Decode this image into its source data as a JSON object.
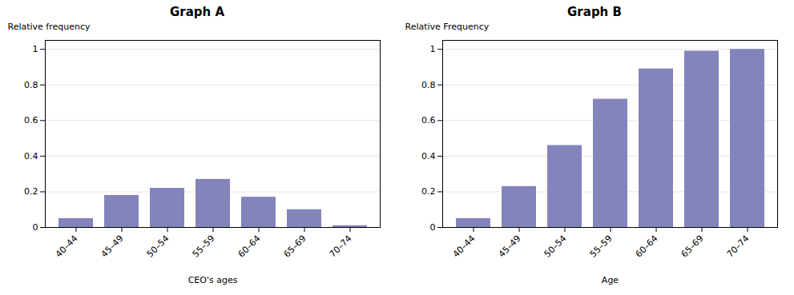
{
  "chart_data": [
    {
      "type": "bar",
      "title": "Graph A",
      "xlabel": "CEO's ages",
      "ylabel": "Relative frequency",
      "categories": [
        "40–44",
        "45–49",
        "50–54",
        "55–59",
        "60–64",
        "65–69",
        "70–74"
      ],
      "values": [
        0.05,
        0.18,
        0.22,
        0.27,
        0.17,
        0.1,
        0.01
      ],
      "color": "#8484bc",
      "ylim": [
        0,
        1.05
      ],
      "yticks": [
        0,
        0.2,
        0.4,
        0.6,
        0.8,
        1
      ],
      "grid": true
    },
    {
      "type": "bar",
      "title": "Graph B",
      "xlabel": "Age",
      "ylabel": "Relative Frequency",
      "categories": [
        "40–44",
        "45–49",
        "50–54",
        "55–59",
        "60–64",
        "65–69",
        "70–74"
      ],
      "values": [
        0.05,
        0.23,
        0.46,
        0.72,
        0.89,
        0.99,
        1.0
      ],
      "color": "#8484bc",
      "ylim": [
        0,
        1.05
      ],
      "yticks": [
        0,
        0.2,
        0.4,
        0.6,
        0.8,
        1
      ],
      "grid": true
    }
  ]
}
